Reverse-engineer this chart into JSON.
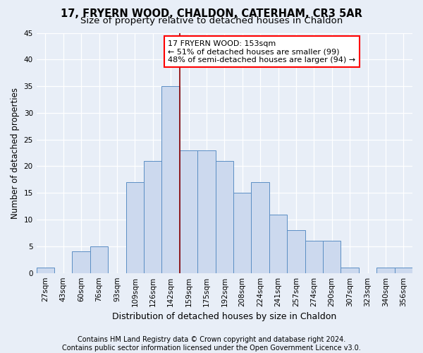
{
  "title": "17, FRYERN WOOD, CHALDON, CATERHAM, CR3 5AR",
  "subtitle": "Size of property relative to detached houses in Chaldon",
  "xlabel": "Distribution of detached houses by size in Chaldon",
  "ylabel": "Number of detached properties",
  "footer_line1": "Contains HM Land Registry data © Crown copyright and database right 2024.",
  "footer_line2": "Contains public sector information licensed under the Open Government Licence v3.0.",
  "bin_labels": [
    "27sqm",
    "43sqm",
    "60sqm",
    "76sqm",
    "93sqm",
    "109sqm",
    "126sqm",
    "142sqm",
    "159sqm",
    "175sqm",
    "192sqm",
    "208sqm",
    "224sqm",
    "241sqm",
    "257sqm",
    "274sqm",
    "290sqm",
    "307sqm",
    "323sqm",
    "340sqm",
    "356sqm"
  ],
  "bar_values": [
    1,
    0,
    4,
    5,
    0,
    17,
    21,
    35,
    23,
    23,
    21,
    15,
    17,
    11,
    8,
    6,
    6,
    1,
    0,
    1,
    1
  ],
  "bar_color": "#ccd9ee",
  "bar_edgecolor": "#5b8ec4",
  "vline_x_idx": 7.5,
  "vline_color": "#8b0000",
  "annotation_text_line1": "17 FRYERN WOOD: 153sqm",
  "annotation_text_line2": "← 51% of detached houses are smaller (99)",
  "annotation_text_line3": "48% of semi-detached houses are larger (94) →",
  "ylim": [
    0,
    45
  ],
  "yticks": [
    0,
    5,
    10,
    15,
    20,
    25,
    30,
    35,
    40,
    45
  ],
  "bg_color": "#e8eef7",
  "plot_bg_color": "#e8eef7",
  "grid_color": "#ffffff",
  "title_fontsize": 10.5,
  "subtitle_fontsize": 9.5,
  "ylabel_fontsize": 8.5,
  "xlabel_fontsize": 9,
  "tick_fontsize": 7.5,
  "ann_fontsize": 8,
  "footer_fontsize": 7
}
